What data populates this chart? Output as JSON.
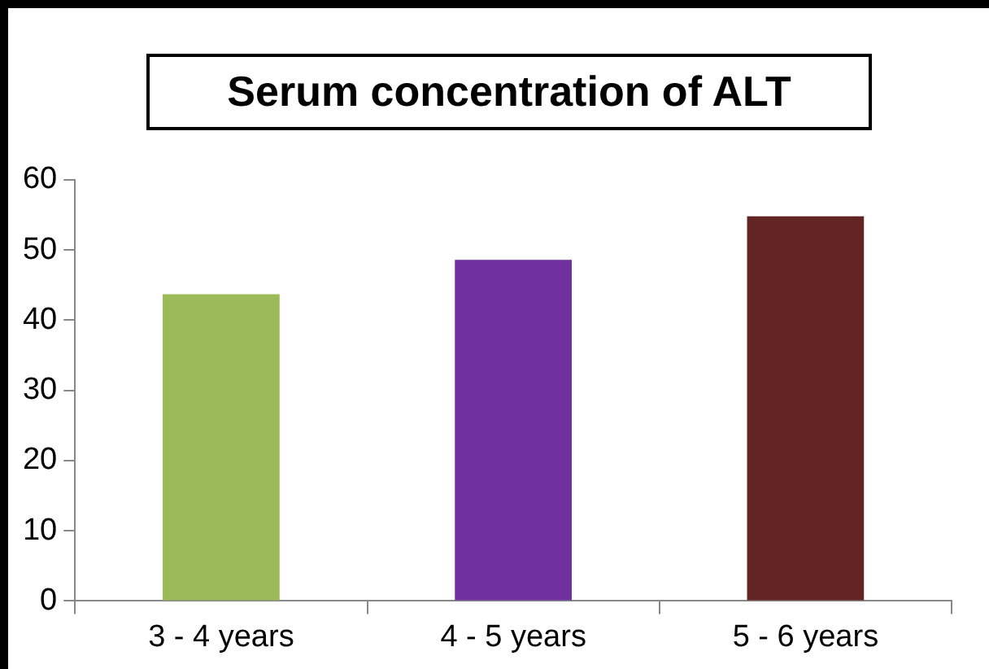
{
  "chart_data": {
    "type": "bar",
    "title": "Serum concentration of ALT",
    "categories": [
      "3 - 4 years",
      "4 - 5 years",
      "5 - 6 years"
    ],
    "values": [
      43.7,
      48.6,
      54.8
    ],
    "colors": [
      "#9bbb59",
      "#7030a0",
      "#632523"
    ],
    "ylim": [
      0,
      60
    ],
    "yticks": [
      0,
      10,
      20,
      30,
      40,
      50,
      60
    ],
    "grid": false,
    "legend": false
  }
}
